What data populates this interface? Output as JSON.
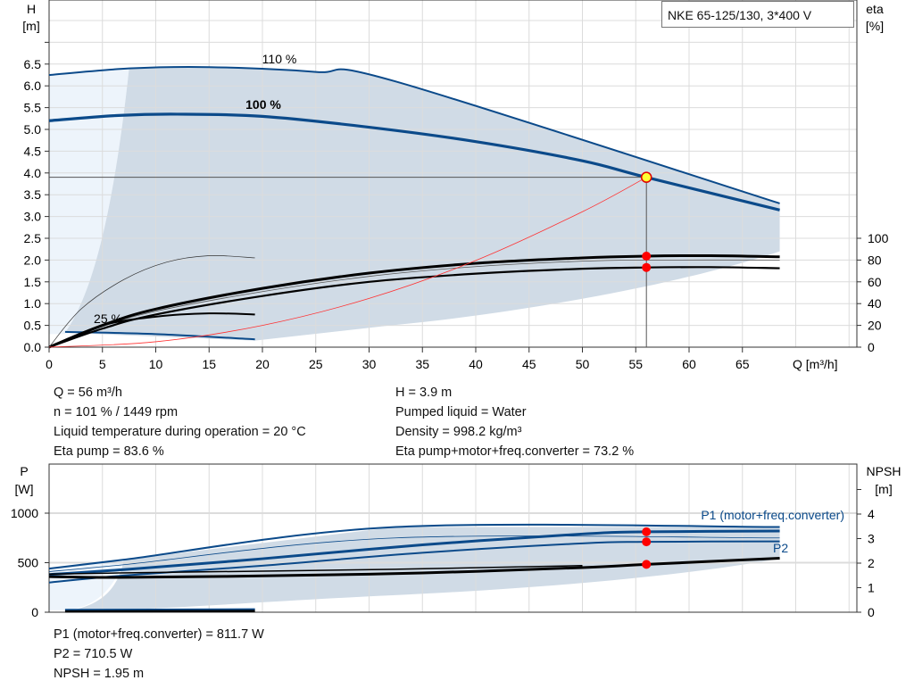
{
  "title": "NKE 65-125/130, 3*400 V",
  "info_top_left": [
    "Q = 56 m³/h",
    "n = 101 % / 1449 rpm",
    "Liquid temperature during operation = 20 °C",
    "Eta pump = 83.6 %"
  ],
  "info_top_right": [
    "H = 3.9 m",
    "Pumped liquid = Water",
    "Density = 998.2 kg/m³",
    "Eta pump+motor+freq.converter = 73.2 %"
  ],
  "info_bottom": [
    "P1 (motor+freq.converter) = 811.7 W",
    "P2 = 710.5 W",
    "NPSH = 1.95 m"
  ],
  "colors": {
    "curve_blue": "#0b4a8a",
    "area": "#d0dbe6",
    "area_light": "#edf4fb",
    "marker": "#ff0000",
    "system_curve": "#ff3030",
    "grid": "#dcdcdc"
  },
  "chart_data": [
    {
      "type": "line",
      "xlabel": "Q [m³/h]",
      "ylabel": "H\n[m]",
      "ylabel_lines": [
        "H",
        "[m]"
      ],
      "y2label_lines": [
        "eta",
        "[%]"
      ],
      "xlim": [
        0,
        75
      ],
      "ylim": [
        0,
        7.5
      ],
      "y2lim": [
        0,
        100
      ],
      "x_ticks": [
        0,
        5,
        10,
        15,
        20,
        25,
        30,
        35,
        40,
        45,
        50,
        55,
        60,
        65
      ],
      "y_ticks": [
        "0.0",
        "0.5",
        "1.0",
        "1.5",
        "2.0",
        "2.5",
        "3.0",
        "3.5",
        "4.0",
        "4.5",
        "5.0",
        "5.5",
        "6.0",
        "6.5"
      ],
      "y2_ticks": [
        0,
        20,
        40,
        60,
        80,
        100
      ],
      "grid": true,
      "curve_labels": {
        "h110": "110 %",
        "h100": "100 %",
        "h25": "25 %"
      },
      "series": [
        {
          "id": "h110",
          "axis": "H",
          "points": [
            [
              0,
              6.25
            ],
            [
              7.5,
              6.4
            ],
            [
              15,
              6.43
            ],
            [
              25,
              6.32
            ],
            [
              32.5,
              6.1
            ],
            [
              68.5,
              3.3
            ]
          ]
        },
        {
          "id": "h100",
          "axis": "H",
          "points": [
            [
              0,
              5.2
            ],
            [
              6.5,
              5.32
            ],
            [
              12,
              5.35
            ],
            [
              20,
              5.3
            ],
            [
              30,
              5.05
            ],
            [
              40,
              4.72
            ],
            [
              50,
              4.28
            ],
            [
              56,
              3.9
            ],
            [
              68.5,
              3.15
            ]
          ]
        },
        {
          "id": "h25",
          "axis": "H",
          "points": [
            [
              1.5,
              0.35
            ],
            [
              10,
              0.3
            ],
            [
              19.3,
              0.18
            ]
          ]
        },
        {
          "id": "eta_pump",
          "axis": "eta",
          "points": [
            [
              0,
              0
            ],
            [
              5,
              20
            ],
            [
              10,
              35
            ],
            [
              20,
              54
            ],
            [
              30,
              68
            ],
            [
              40,
              77
            ],
            [
              50,
              82
            ],
            [
              56,
              83.6
            ],
            [
              62,
              84
            ],
            [
              68.5,
              83
            ]
          ]
        },
        {
          "id": "eta_total",
          "axis": "eta",
          "points": [
            [
              0,
              0
            ],
            [
              5,
              17
            ],
            [
              10,
              30
            ],
            [
              20,
              47
            ],
            [
              30,
              60
            ],
            [
              40,
              67.5
            ],
            [
              50,
              72
            ],
            [
              56,
              73.2
            ],
            [
              62,
              73.5
            ],
            [
              68.5,
              72.5
            ]
          ]
        },
        {
          "id": "eta_low",
          "axis": "eta",
          "points": [
            [
              0,
              0
            ],
            [
              5,
              20
            ],
            [
              10,
              28
            ],
            [
              15,
              31
            ],
            [
              19.3,
              30
            ]
          ]
        },
        {
          "id": "eta_min",
          "axis": "eta",
          "points": [
            [
              0,
              0
            ],
            [
              3,
              35
            ],
            [
              7,
              62
            ],
            [
              11,
              78
            ],
            [
              15,
              84
            ],
            [
              19.3,
              82
            ]
          ]
        },
        {
          "id": "system",
          "axis": "H",
          "points": [
            [
              0,
              0
            ],
            [
              10,
              0.124
            ],
            [
              20,
              0.5
            ],
            [
              30,
              1.12
            ],
            [
              40,
              1.99
            ],
            [
              50,
              3.11
            ],
            [
              56,
              3.9
            ]
          ]
        }
      ],
      "operating_point": {
        "Q": 56,
        "H": 3.9,
        "eta_pump": 83.6,
        "eta_total": 73.2
      }
    },
    {
      "type": "line",
      "ylabel_lines": [
        "P",
        "[W]"
      ],
      "y2label_lines": [
        "NPSH",
        "[m]"
      ],
      "xlim": [
        0,
        75
      ],
      "ylim": [
        0,
        1500
      ],
      "y2lim": [
        0,
        6
      ],
      "y_ticks": [
        0,
        500,
        1000
      ],
      "y2_ticks": [
        0,
        1,
        2,
        3,
        4
      ],
      "curve_labels": {
        "p1": "P1 (motor+freq.converter)",
        "p2": "P2"
      },
      "series": [
        {
          "id": "p1_110",
          "axis": "P",
          "points": [
            [
              0,
              440
            ],
            [
              7,
              530
            ],
            [
              32.5,
              860
            ],
            [
              68.5,
              860
            ]
          ]
        },
        {
          "id": "p1_110_thin",
          "axis": "P",
          "points": [
            [
              0,
              410
            ],
            [
              7,
              480
            ],
            [
              32.5,
              750
            ],
            [
              68.5,
              750
            ]
          ]
        },
        {
          "id": "p1",
          "axis": "P",
          "points": [
            [
              0,
              380
            ],
            [
              7,
              430
            ],
            [
              20,
              540
            ],
            [
              35,
              680
            ],
            [
              50,
              790
            ],
            [
              56,
              811.7
            ],
            [
              68.5,
              820
            ]
          ]
        },
        {
          "id": "p2",
          "axis": "P",
          "points": [
            [
              0,
              300
            ],
            [
              7,
              370
            ],
            [
              20,
              470
            ],
            [
              35,
              600
            ],
            [
              50,
              695
            ],
            [
              56,
              710.5
            ],
            [
              68.5,
              715
            ]
          ]
        },
        {
          "id": "npsh",
          "axis": "NPSH",
          "points": [
            [
              0,
              1.45
            ],
            [
              6.5,
              1.42
            ],
            [
              20,
              1.48
            ],
            [
              35,
              1.6
            ],
            [
              50,
              1.82
            ],
            [
              56,
              1.95
            ],
            [
              68.5,
              2.2
            ]
          ]
        },
        {
          "id": "npsh_110",
          "axis": "NPSH",
          "points": [
            [
              0,
              1.55
            ],
            [
              6.5,
              1.6
            ],
            [
              32.5,
              1.75
            ],
            [
              50,
              1.9
            ]
          ]
        },
        {
          "id": "npsh_low",
          "axis": "NPSH",
          "points": [
            [
              1.5,
              0.03
            ],
            [
              19.3,
              0.05
            ]
          ]
        }
      ],
      "operating_point": {
        "Q": 56,
        "P1": 811.7,
        "P2": 710.5,
        "NPSH": 1.95
      }
    }
  ]
}
